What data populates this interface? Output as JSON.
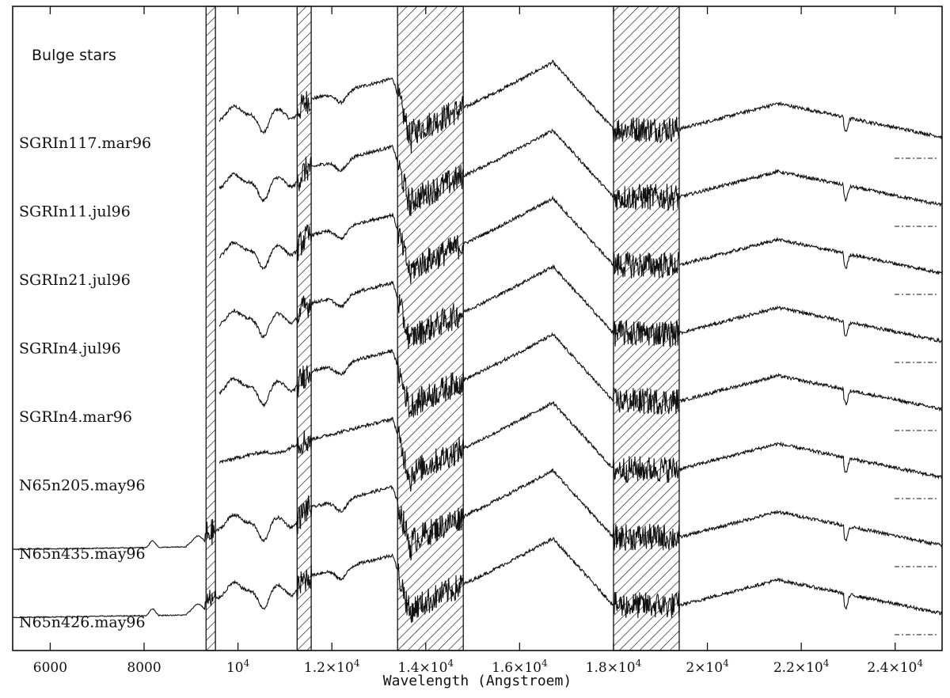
{
  "chart_data": {
    "type": "line",
    "title": "Bulge stars",
    "xlabel": "Wavelength (Angstroem)",
    "ylabel": "",
    "xlim": [
      5200,
      25000
    ],
    "x_ticks": [
      {
        "value": 6000,
        "label": "6000",
        "mant": "",
        "exp": ""
      },
      {
        "value": 8000,
        "label": "8000",
        "mant": "",
        "exp": ""
      },
      {
        "value": 10000,
        "label": "10^4",
        "mant": "10",
        "exp": "4"
      },
      {
        "value": 12000,
        "label": "1.2×10^4",
        "mant": "1.2×10",
        "exp": "4"
      },
      {
        "value": 14000,
        "label": "1.4×10^4",
        "mant": "1.4×10",
        "exp": "4"
      },
      {
        "value": 16000,
        "label": "1.6×10^4",
        "mant": "1.6×10",
        "exp": "4"
      },
      {
        "value": 18000,
        "label": "1.8×10^4",
        "mant": "1.8×10",
        "exp": "4"
      },
      {
        "value": 20000,
        "label": "2×10^4",
        "mant": "2×10",
        "exp": "4"
      },
      {
        "value": 22000,
        "label": "2.2×10^4",
        "mant": "2.2×10",
        "exp": "4"
      },
      {
        "value": 24000,
        "label": "2.4×10^4",
        "mant": "2.4×10",
        "exp": "4"
      }
    ],
    "hatched_bands": [
      [
        9320,
        9520
      ],
      [
        11260,
        11560
      ],
      [
        13400,
        14800
      ],
      [
        18000,
        19400
      ]
    ],
    "series": [
      {
        "name": "SGRIn117.mar96",
        "start": 9600,
        "spectral_type": "late"
      },
      {
        "name": "SGRIn11.jul96",
        "start": 9600,
        "spectral_type": "late"
      },
      {
        "name": "SGRIn21.jul96",
        "start": 9600,
        "spectral_type": "late"
      },
      {
        "name": "SGRIn4.jul96",
        "start": 9600,
        "spectral_type": "late"
      },
      {
        "name": "SGRIn4.mar96",
        "start": 9600,
        "spectral_type": "late"
      },
      {
        "name": "N65n205.may96",
        "start": 9600,
        "spectral_type": "early"
      },
      {
        "name": "N65n435.may96",
        "start": 5200,
        "spectral_type": "late"
      },
      {
        "name": "N65n426.may96",
        "start": 5200,
        "spectral_type": "late"
      }
    ],
    "grid": false,
    "colors": {
      "line": "#111111",
      "background": "#ffffff"
    }
  }
}
